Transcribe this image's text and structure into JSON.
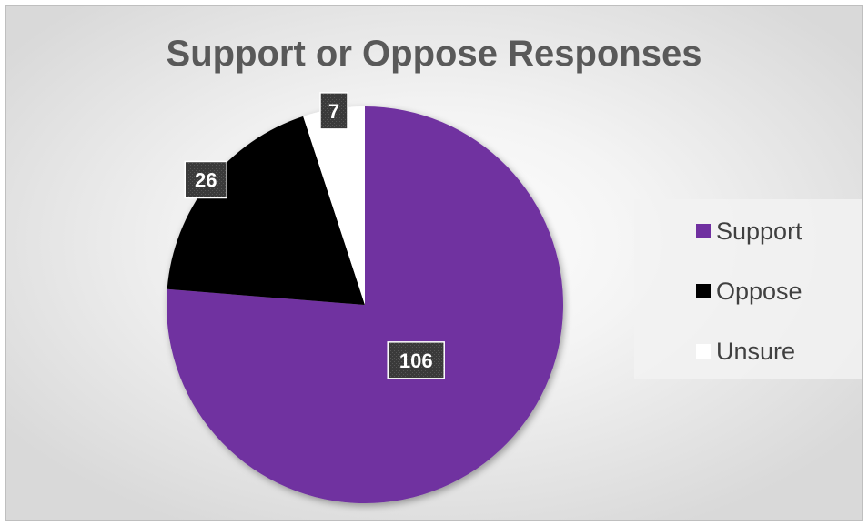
{
  "chart_data": {
    "type": "pie",
    "title": "Support or Oppose Responses",
    "categories": [
      "Support",
      "Oppose",
      "Unsure"
    ],
    "values": [
      106,
      26,
      7
    ],
    "colors": [
      "#7030a0",
      "#000000",
      "#ffffff"
    ],
    "data_labels": [
      "106",
      "26",
      "7"
    ],
    "start_angle": "12 o'clock",
    "direction": "clockwise",
    "legend_placement": "right"
  }
}
